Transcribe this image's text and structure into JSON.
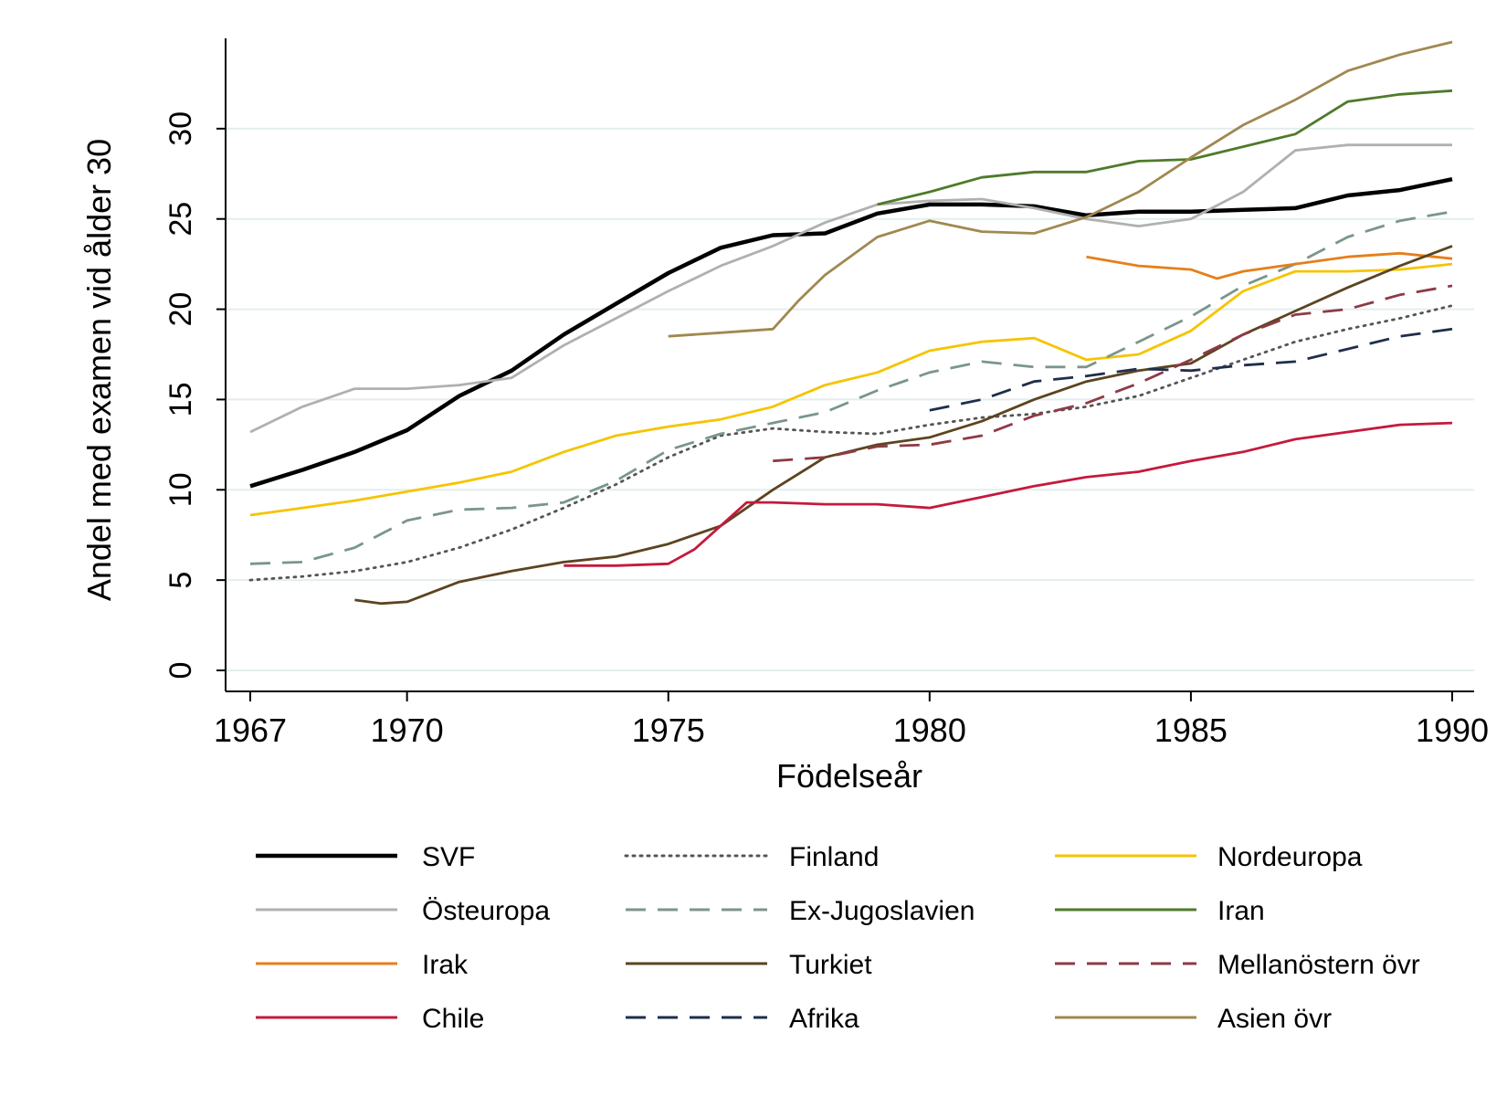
{
  "chart_data": {
    "type": "line",
    "title": "",
    "xlabel": "Födelseår",
    "ylabel": "Andel med examen vid ålder 30",
    "xlim": [
      1967,
      1990
    ],
    "ylim": [
      0,
      35
    ],
    "x_ticks": [
      "1967",
      "1970",
      "1975",
      "1980",
      "1985",
      "1990"
    ],
    "y_ticks": [
      "0",
      "5",
      "10",
      "15",
      "20",
      "25",
      "30"
    ],
    "grid": true,
    "legend_position": "bottom",
    "series": [
      {
        "name": "SVF",
        "color": "#000000",
        "dash": "solid",
        "x": [
          1967,
          1968,
          1969,
          1970,
          1971,
          1972,
          1973,
          1974,
          1975,
          1976,
          1977,
          1978,
          1979,
          1980,
          1981,
          1982,
          1983,
          1984,
          1985,
          1986,
          1987,
          1988,
          1989,
          1990
        ],
        "y": [
          10.2,
          11.1,
          12.1,
          13.3,
          15.2,
          16.6,
          18.6,
          20.3,
          22.0,
          23.4,
          24.1,
          24.2,
          25.3,
          25.8,
          25.8,
          25.7,
          25.2,
          25.4,
          25.4,
          25.5,
          25.6,
          26.3,
          26.6,
          27.2
        ]
      },
      {
        "name": "Finland",
        "color": "#555555",
        "dash": "dot",
        "x": [
          1967,
          1968,
          1969,
          1970,
          1971,
          1972,
          1973,
          1974,
          1975,
          1976,
          1977,
          1978,
          1979,
          1980,
          1981,
          1982,
          1983,
          1984,
          1985,
          1986,
          1987,
          1988,
          1989,
          1990
        ],
        "y": [
          5.0,
          5.2,
          5.5,
          6.0,
          6.8,
          7.8,
          9.0,
          10.3,
          11.8,
          13.0,
          13.4,
          13.2,
          13.1,
          13.6,
          14.0,
          14.2,
          14.6,
          15.2,
          16.2,
          17.2,
          18.2,
          18.9,
          19.5,
          20.2
        ]
      },
      {
        "name": "Nordeuropa",
        "color": "#f5c400",
        "dash": "solid",
        "x": [
          1967,
          1968,
          1969,
          1970,
          1971,
          1972,
          1973,
          1974,
          1975,
          1976,
          1977,
          1978,
          1979,
          1980,
          1981,
          1982,
          1983,
          1984,
          1985,
          1986,
          1987,
          1988,
          1989,
          1990
        ],
        "y": [
          8.6,
          9.0,
          9.4,
          9.9,
          10.4,
          11.0,
          12.1,
          13.0,
          13.5,
          13.9,
          14.6,
          15.8,
          16.5,
          17.7,
          18.2,
          18.4,
          17.2,
          17.5,
          18.8,
          21.0,
          22.1,
          22.1,
          22.2,
          22.5
        ]
      },
      {
        "name": "Östeuropa",
        "color": "#b0b0b0",
        "dash": "solid",
        "x": [
          1967,
          1968,
          1969,
          1970,
          1971,
          1972,
          1973,
          1974,
          1975,
          1976,
          1977,
          1978,
          1979,
          1980,
          1981,
          1982,
          1983,
          1984,
          1985,
          1986,
          1987,
          1988,
          1989,
          1990
        ],
        "y": [
          13.2,
          14.6,
          15.6,
          15.6,
          15.8,
          16.2,
          18.0,
          19.5,
          21.0,
          22.4,
          23.5,
          24.8,
          25.8,
          26.0,
          26.1,
          25.6,
          25.0,
          24.6,
          25.0,
          26.5,
          28.8,
          29.1,
          29.1,
          29.1
        ]
      },
      {
        "name": "Ex-Jugoslavien",
        "color": "#7a968a",
        "dash": "dash",
        "x": [
          1967,
          1968,
          1969,
          1970,
          1971,
          1972,
          1973,
          1974,
          1975,
          1976,
          1977,
          1978,
          1979,
          1980,
          1981,
          1982,
          1983,
          1984,
          1985,
          1986,
          1987,
          1988,
          1989,
          1990
        ],
        "y": [
          5.9,
          6.0,
          6.8,
          8.3,
          8.9,
          9.0,
          9.3,
          10.5,
          12.2,
          13.1,
          13.7,
          14.3,
          15.5,
          16.5,
          17.1,
          16.8,
          16.8,
          18.2,
          19.6,
          21.3,
          22.5,
          24.0,
          24.9,
          25.4
        ]
      },
      {
        "name": "Iran",
        "color": "#4f7a2a",
        "dash": "solid",
        "x": [
          1979,
          1980,
          1981,
          1982,
          1983,
          1984,
          1985,
          1986,
          1987,
          1988,
          1989,
          1990
        ],
        "y": [
          25.8,
          26.5,
          27.3,
          27.6,
          27.6,
          28.2,
          28.3,
          29.0,
          29.7,
          31.5,
          31.9,
          32.1
        ]
      },
      {
        "name": "Irak",
        "color": "#e57f1a",
        "dash": "solid",
        "x": [
          1983,
          1984,
          1985,
          1985.5,
          1986,
          1987,
          1988,
          1989,
          1990
        ],
        "y": [
          22.9,
          22.4,
          22.2,
          21.7,
          22.1,
          22.5,
          22.9,
          23.1,
          22.8
        ]
      },
      {
        "name": "Turkiet",
        "color": "#5c4420",
        "dash": "solid",
        "x": [
          1969,
          1969.5,
          1970,
          1971,
          1972,
          1973,
          1974,
          1975,
          1976,
          1977,
          1978,
          1979,
          1980,
          1981,
          1982,
          1983,
          1984,
          1985,
          1986,
          1987,
          1988,
          1989,
          1990
        ],
        "y": [
          3.9,
          3.7,
          3.8,
          4.9,
          5.5,
          6.0,
          6.3,
          7.0,
          8.0,
          10.0,
          11.8,
          12.5,
          12.9,
          13.8,
          15.0,
          16.0,
          16.6,
          17.0,
          18.6,
          19.9,
          21.2,
          22.4,
          23.5
        ]
      },
      {
        "name": "Mellanöstern övr",
        "color": "#8e3a46",
        "dash": "dash",
        "x": [
          1977,
          1978,
          1979,
          1980,
          1981,
          1982,
          1983,
          1984,
          1985,
          1986,
          1987,
          1988,
          1989,
          1990
        ],
        "y": [
          11.6,
          11.8,
          12.4,
          12.5,
          13.0,
          14.1,
          14.8,
          15.9,
          17.2,
          18.6,
          19.7,
          20.0,
          20.8,
          21.3
        ]
      },
      {
        "name": "Chile",
        "color": "#c41a3d",
        "dash": "solid",
        "x": [
          1973,
          1974,
          1975,
          1975.5,
          1976,
          1976.5,
          1977,
          1978,
          1979,
          1980,
          1981,
          1982,
          1983,
          1984,
          1985,
          1986,
          1987,
          1988,
          1989,
          1990
        ],
        "y": [
          5.8,
          5.8,
          5.9,
          6.7,
          8.0,
          9.3,
          9.3,
          9.2,
          9.2,
          9.0,
          9.6,
          10.2,
          10.7,
          11.0,
          11.6,
          12.1,
          12.8,
          13.2,
          13.6,
          13.7
        ]
      },
      {
        "name": "Afrika",
        "color": "#1f2e4a",
        "dash": "dash",
        "x": [
          1980,
          1981,
          1982,
          1983,
          1984,
          1985,
          1986,
          1987,
          1988,
          1989,
          1990
        ],
        "y": [
          14.4,
          15.0,
          16.0,
          16.3,
          16.7,
          16.6,
          16.9,
          17.1,
          17.8,
          18.5,
          18.9
        ]
      },
      {
        "name": "Asien övr",
        "color": "#a08850",
        "dash": "solid",
        "x": [
          1975,
          1976,
          1977,
          1977.5,
          1978,
          1979,
          1980,
          1981,
          1982,
          1983,
          1984,
          1985,
          1986,
          1987,
          1988,
          1989,
          1990
        ],
        "y": [
          18.5,
          18.7,
          18.9,
          20.5,
          21.9,
          24.0,
          24.9,
          24.3,
          24.2,
          25.1,
          26.5,
          28.4,
          30.2,
          31.6,
          33.2,
          34.1,
          34.8
        ]
      }
    ]
  }
}
